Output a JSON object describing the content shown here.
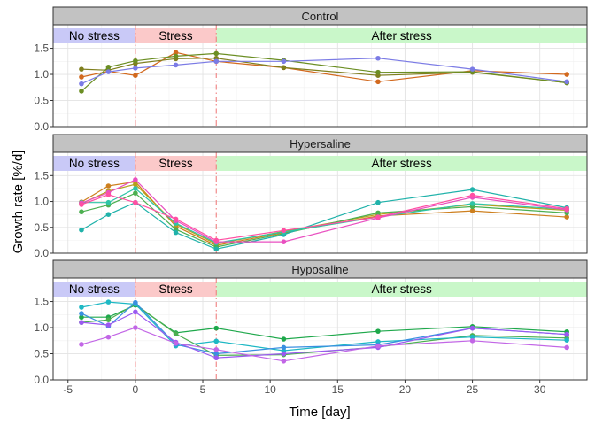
{
  "chart_data": {
    "type": "line",
    "xlabel": "Time  [day]",
    "ylabel": "Growth rate  [%/d]",
    "xlim": [
      -6.1,
      33.5
    ],
    "ylim": [
      0,
      1.95
    ],
    "x_ticks": [
      -5,
      0,
      5,
      10,
      15,
      20,
      25,
      30
    ],
    "x_tick_labels": [
      "-5",
      "0",
      "5",
      "10",
      "15",
      "20",
      "25",
      "30"
    ],
    "y_ticks": [
      0,
      0.5,
      1,
      1.5
    ],
    "y_tick_labels": [
      "0.0",
      "0.5",
      "1.0",
      "1.5"
    ],
    "grid": true,
    "phase_lines_x": [
      0,
      6
    ],
    "phases": [
      {
        "label": "No stress",
        "from": -6.1,
        "to": 0,
        "color": "#c9c9f7"
      },
      {
        "label": "Stress",
        "from": 0,
        "to": 6,
        "color": "#fbc9c9"
      },
      {
        "label": "After stress",
        "from": 6,
        "to": 33.5,
        "color": "#c9f7c9"
      }
    ],
    "facets": [
      {
        "title": "Control",
        "series": [
          {
            "color": "#d2691e",
            "x": [
              -4,
              -2,
              0,
              3,
              6,
              11,
              18,
              25,
              32
            ],
            "values": [
              0.95,
              1.06,
              0.98,
              1.42,
              1.25,
              1.13,
              0.86,
              1.07,
              1.0
            ]
          },
          {
            "color": "#7f7f1e",
            "x": [
              -4,
              -2,
              0,
              3,
              6,
              11,
              18,
              25,
              32
            ],
            "values": [
              1.1,
              1.08,
              1.21,
              1.3,
              1.31,
              1.13,
              0.98,
              1.04,
              0.84
            ]
          },
          {
            "color": "#6b8e23",
            "x": [
              -4,
              -2,
              0,
              3,
              6,
              11,
              18,
              25,
              32
            ],
            "values": [
              0.68,
              1.14,
              1.26,
              1.35,
              1.4,
              1.27,
              1.04,
              1.05,
              0.84
            ]
          },
          {
            "color": "#7b7be5",
            "x": [
              -4,
              -2,
              0,
              3,
              6,
              11,
              18,
              25,
              32
            ],
            "values": [
              0.82,
              1.05,
              1.12,
              1.18,
              1.25,
              1.25,
              1.31,
              1.1,
              0.86
            ]
          }
        ]
      },
      {
        "title": "Hypersaline",
        "series": [
          {
            "color": "#cd7f1e",
            "x": [
              -4,
              -2,
              0,
              3,
              6,
              11,
              18,
              25,
              32
            ],
            "values": [
              0.99,
              1.3,
              1.38,
              0.52,
              0.15,
              0.4,
              0.72,
              0.82,
              0.7
            ]
          },
          {
            "color": "#b5a01a",
            "x": [
              -4,
              -2,
              0,
              3,
              6,
              11,
              18,
              25,
              32
            ],
            "values": [
              0.96,
              1.2,
              1.33,
              0.56,
              0.18,
              0.42,
              0.75,
              0.94,
              0.83
            ]
          },
          {
            "color": "#4caf50",
            "x": [
              -4,
              -2,
              0,
              3,
              6,
              11,
              18,
              25,
              32
            ],
            "values": [
              0.8,
              0.93,
              1.16,
              0.46,
              0.12,
              0.38,
              0.78,
              0.9,
              0.78
            ]
          },
          {
            "color": "#20b2aa",
            "x": [
              -4,
              -2,
              0,
              3,
              6,
              11,
              18,
              25,
              32
            ],
            "values": [
              0.45,
              0.75,
              0.98,
              0.4,
              0.08,
              0.36,
              0.98,
              1.23,
              0.88
            ]
          },
          {
            "color": "#2ec4a6",
            "x": [
              -4,
              -2,
              0,
              3,
              6,
              11,
              18,
              25,
              32
            ],
            "values": [
              0.98,
              0.98,
              1.25,
              0.58,
              0.2,
              0.41,
              0.7,
              0.96,
              0.85
            ]
          },
          {
            "color": "#e94fc0",
            "x": [
              -4,
              -2,
              0,
              3,
              6,
              11,
              18,
              25,
              32
            ],
            "values": [
              0.97,
              1.17,
              1.42,
              0.63,
              0.22,
              0.22,
              0.68,
              1.08,
              0.84
            ]
          },
          {
            "color": "#ff4fa3",
            "x": [
              -4,
              -2,
              0,
              3,
              6,
              11,
              18,
              25,
              32
            ],
            "values": [
              0.94,
              1.13,
              0.98,
              0.66,
              0.25,
              0.44,
              0.7,
              1.12,
              0.86
            ]
          }
        ]
      },
      {
        "title": "Hyposaline",
        "series": [
          {
            "color": "#1ea84b",
            "x": [
              -4,
              -2,
              0,
              3,
              6,
              11,
              18,
              25,
              32
            ],
            "values": [
              1.2,
              1.2,
              1.43,
              0.9,
              0.99,
              0.78,
              0.93,
              1.02,
              0.92
            ]
          },
          {
            "color": "#4caf50",
            "x": [
              -4,
              -2,
              0,
              3,
              6,
              11,
              18,
              25,
              32
            ],
            "values": [
              1.1,
              1.15,
              1.45,
              0.88,
              0.47,
              0.48,
              0.63,
              0.85,
              0.8
            ]
          },
          {
            "color": "#1eb8c4",
            "x": [
              -4,
              -2,
              0,
              3,
              6,
              11,
              18,
              25,
              32
            ],
            "values": [
              1.39,
              1.49,
              1.45,
              0.65,
              0.74,
              0.56,
              0.73,
              0.82,
              0.76
            ]
          },
          {
            "color": "#3a8fe0",
            "x": [
              -4,
              -2,
              0,
              3,
              6,
              11,
              18,
              25,
              32
            ],
            "values": [
              1.27,
              1.03,
              1.48,
              0.68,
              0.5,
              0.62,
              0.67,
              0.99,
              0.87
            ]
          },
          {
            "color": "#9b59f0",
            "x": [
              -4,
              -2,
              0,
              3,
              6,
              11,
              18,
              25,
              32
            ],
            "values": [
              1.1,
              1.05,
              1.3,
              0.72,
              0.42,
              0.5,
              0.62,
              0.99,
              0.87
            ]
          },
          {
            "color": "#c266e6",
            "x": [
              -4,
              -2,
              0,
              3,
              6,
              11,
              18,
              25,
              32
            ],
            "values": [
              0.68,
              0.82,
              1.0,
              0.7,
              0.58,
              0.36,
              0.65,
              0.75,
              0.62
            ]
          }
        ]
      }
    ]
  }
}
